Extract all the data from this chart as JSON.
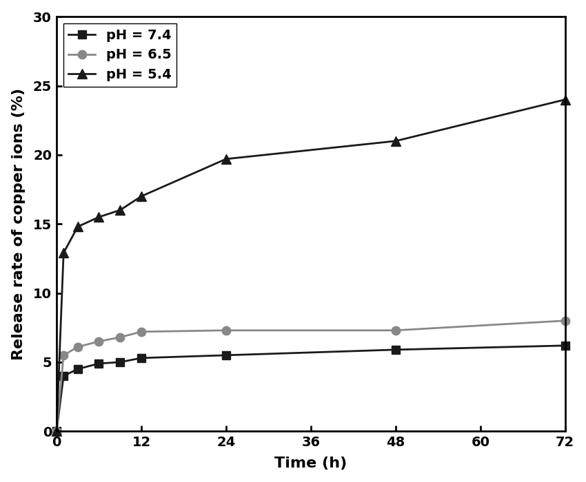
{
  "title": "",
  "xlabel": "Time (h)",
  "ylabel": "Release rate of copper ions (%)",
  "xlim": [
    0,
    72
  ],
  "ylim": [
    0,
    30
  ],
  "xticks": [
    0,
    12,
    24,
    36,
    48,
    60,
    72
  ],
  "yticks": [
    0,
    5,
    10,
    15,
    20,
    25,
    30
  ],
  "series": [
    {
      "label": "pH = 7.4",
      "x": [
        0,
        1,
        3,
        6,
        9,
        12,
        24,
        48,
        72
      ],
      "y": [
        0,
        4.0,
        4.5,
        4.9,
        5.0,
        5.3,
        5.5,
        5.9,
        6.2
      ],
      "color": "#1a1a1a",
      "marker": "s",
      "markersize": 9,
      "linewidth": 2.0
    },
    {
      "label": "pH = 6.5",
      "x": [
        0,
        1,
        3,
        6,
        9,
        12,
        24,
        48,
        72
      ],
      "y": [
        0,
        5.5,
        6.1,
        6.5,
        6.8,
        7.2,
        7.3,
        7.3,
        8.0
      ],
      "color": "#888888",
      "marker": "o",
      "markersize": 9,
      "linewidth": 2.0
    },
    {
      "label": "pH = 5.4",
      "x": [
        0,
        1,
        3,
        6,
        9,
        12,
        24,
        48,
        72
      ],
      "y": [
        0,
        12.9,
        14.8,
        15.5,
        16.0,
        17.0,
        19.7,
        21.0,
        24.0
      ],
      "color": "#1a1a1a",
      "marker": "^",
      "markersize": 10,
      "linewidth": 2.0
    }
  ],
  "legend_fontsize": 14,
  "axis_label_fontsize": 16,
  "tick_fontsize": 14,
  "background_color": "#ffffff",
  "figure_bg": "#ffffff"
}
